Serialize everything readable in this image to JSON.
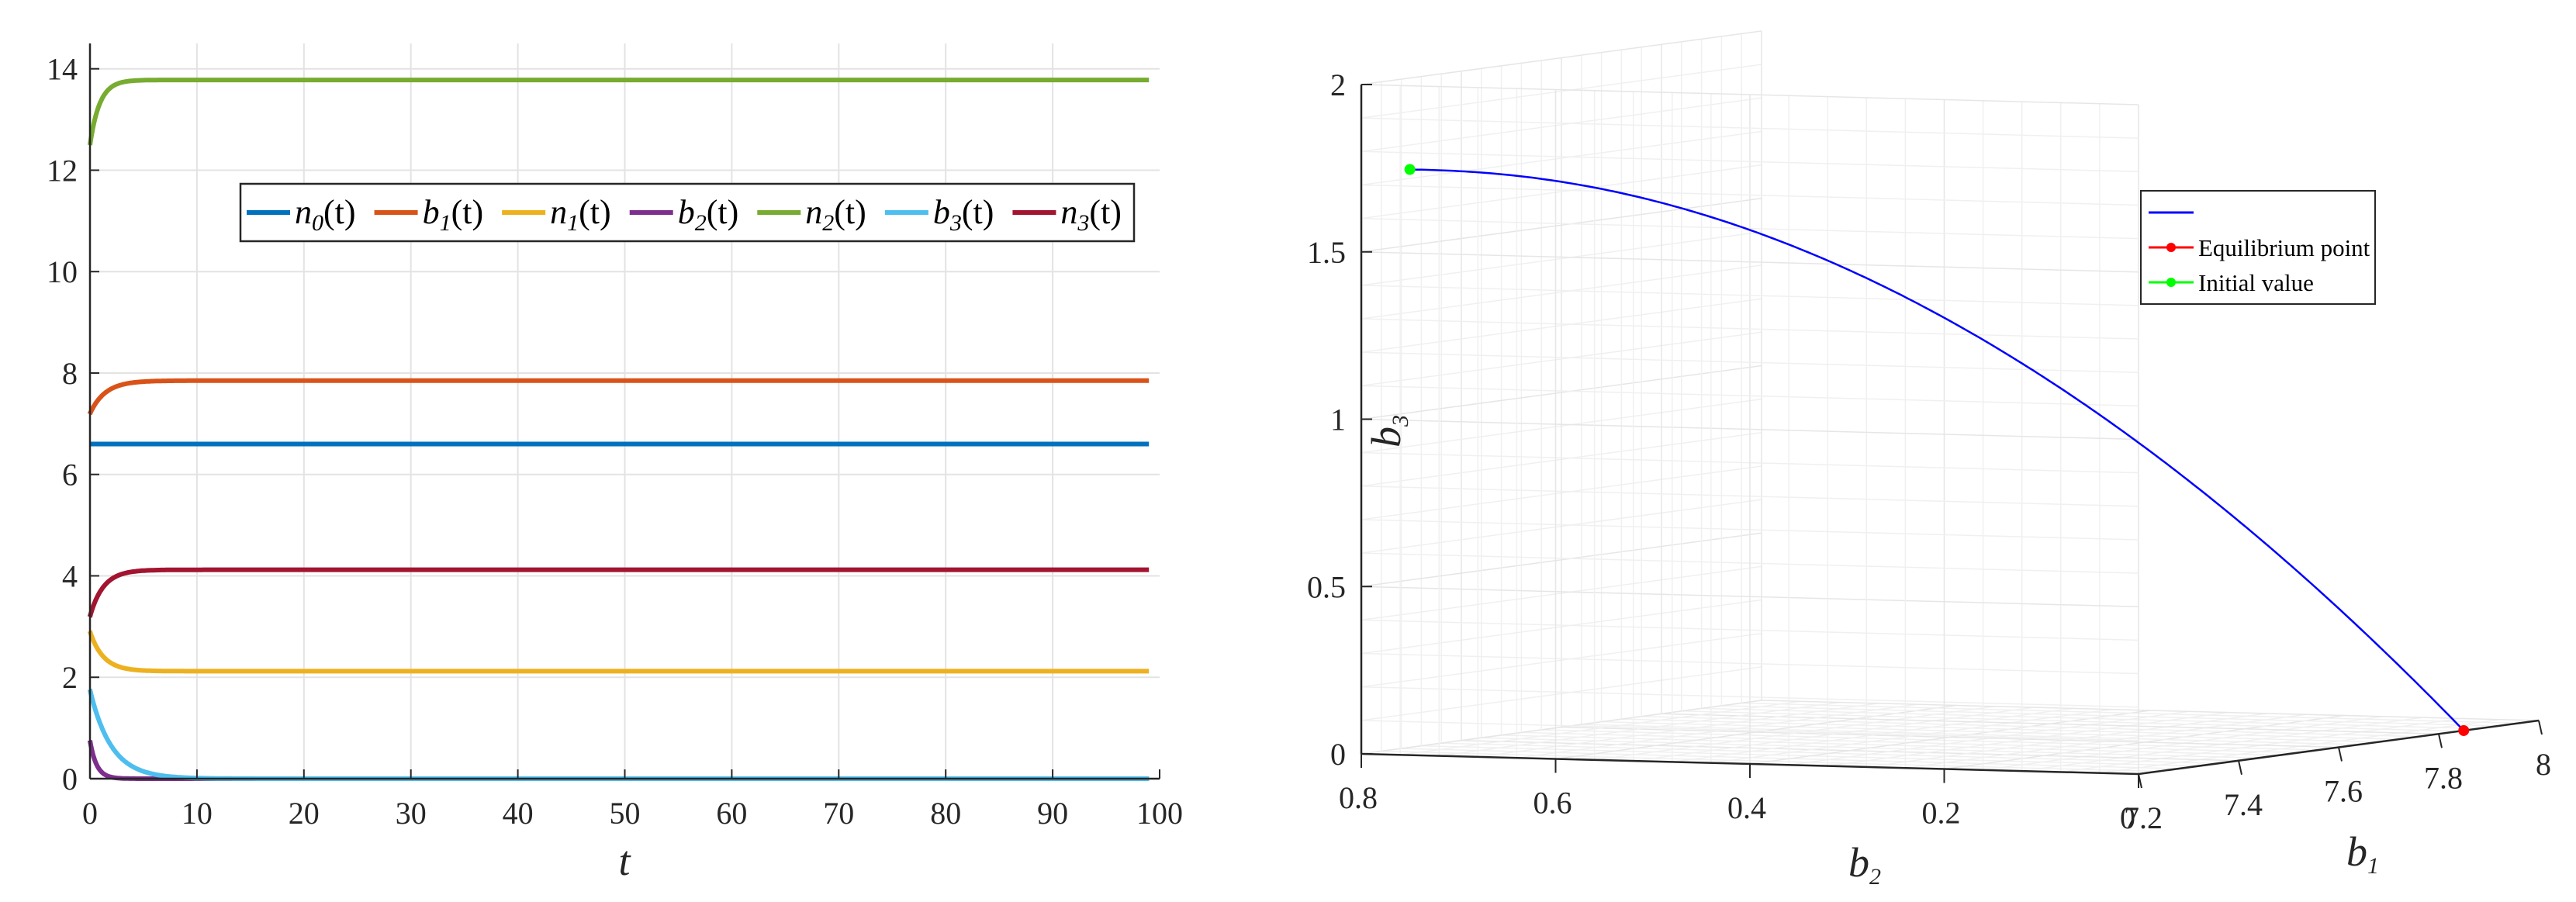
{
  "chart_data": [
    {
      "type": "line",
      "xlabel": "t",
      "ylabel": "",
      "xlim": [
        0,
        100
      ],
      "ylim": [
        0,
        14.5
      ],
      "xticks": [
        0,
        10,
        20,
        30,
        40,
        50,
        60,
        70,
        80,
        90,
        100
      ],
      "yticks": [
        0,
        2,
        4,
        6,
        8,
        10,
        12,
        14
      ],
      "grid": true,
      "legend": "top-right",
      "x_end": 99,
      "series": [
        {
          "var": "n",
          "sub": "0",
          "color": "#0072BD",
          "initial": 6.6,
          "final": 6.6,
          "rate": 1.0
        },
        {
          "var": "b",
          "sub": "1",
          "color": "#D95319",
          "initial": 7.2,
          "final": 7.85,
          "rate": 0.7
        },
        {
          "var": "n",
          "sub": "1",
          "color": "#EDB120",
          "initial": 2.9,
          "final": 2.12,
          "rate": 0.8
        },
        {
          "var": "b",
          "sub": "2",
          "color": "#7E2F8E",
          "initial": 0.75,
          "final": 0.0,
          "rate": 1.6
        },
        {
          "var": "n",
          "sub": "2",
          "color": "#77AC30",
          "initial": 12.5,
          "final": 13.78,
          "rate": 1.1
        },
        {
          "var": "b",
          "sub": "3",
          "color": "#4DBEEE",
          "initial": 1.75,
          "final": 0.0,
          "rate": 0.5
        },
        {
          "var": "n",
          "sub": "3",
          "color": "#A2142F",
          "initial": 3.2,
          "final": 4.12,
          "rate": 0.8
        }
      ],
      "legend_suffix": "(t)"
    },
    {
      "type": "line",
      "projection": "3d",
      "xlabel": "b",
      "xlabel_sub": "1",
      "ylabel": "b",
      "ylabel_sub": "2",
      "zlabel": "b",
      "zlabel_sub": "3",
      "xlim": [
        7.2,
        8.0
      ],
      "ylim": [
        0.0,
        0.8
      ],
      "zlim": [
        0,
        2
      ],
      "xticks": [
        "7.2",
        "7.4",
        "7.6",
        "7.8",
        "8"
      ],
      "yticks": [
        "0",
        "0.2",
        "0.4",
        "0.6",
        "0.8"
      ],
      "zticks": [
        "0",
        "0.5",
        "1",
        "1.5",
        "2"
      ],
      "grid": true,
      "legend": "top-right",
      "legend_entries": [
        "",
        "Equilibrium point",
        "Initial value"
      ],
      "trajectory_color": "#0000FF",
      "equilibrium": {
        "b1": 7.85,
        "b2": 0.0,
        "b3": 0.0,
        "color": "#FF0000"
      },
      "initial": {
        "b1": 7.2,
        "b2": 0.75,
        "b3": 1.75,
        "color": "#00FF00"
      }
    }
  ]
}
